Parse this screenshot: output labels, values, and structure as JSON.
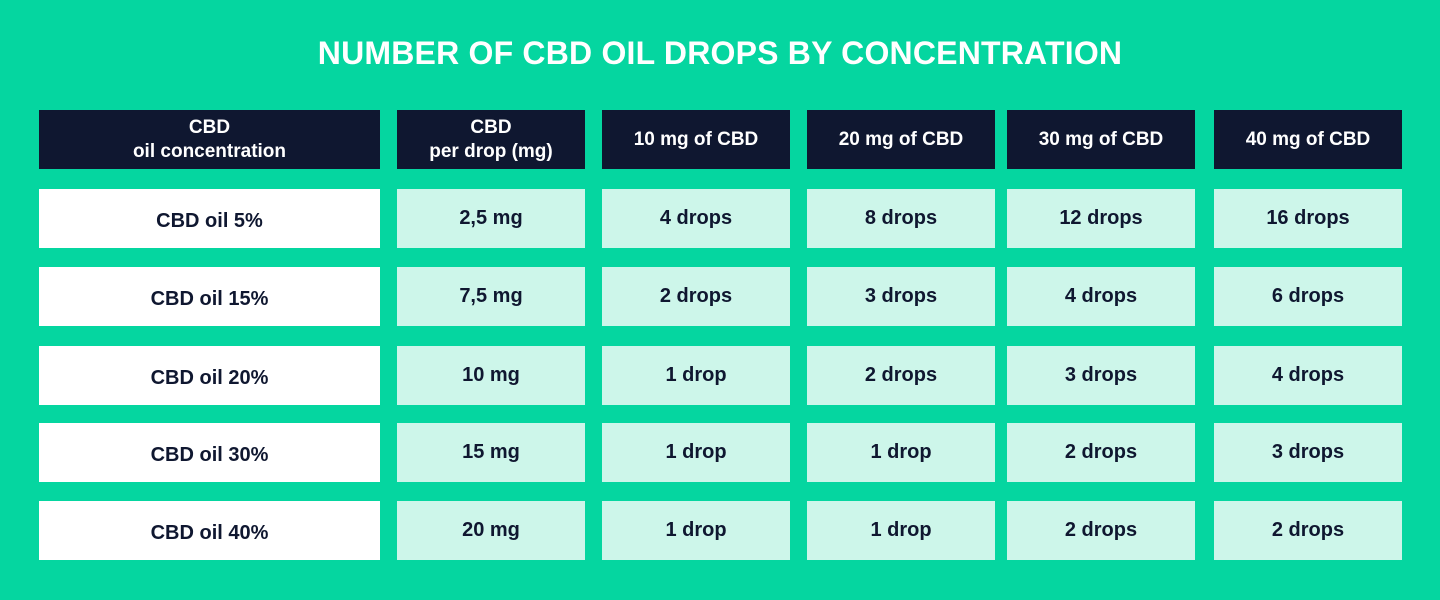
{
  "chart_data": {
    "type": "table",
    "title": "NUMBER OF CBD OIL DROPS BY CONCENTRATION",
    "columns": [
      "CBD\noil concentration",
      "CBD\nper drop (mg)",
      "10 mg of CBD",
      "20 mg of CBD",
      "30 mg of CBD",
      "40 mg of CBD"
    ],
    "rows": [
      [
        "CBD oil 5%",
        "2,5 mg",
        "4 drops",
        "8 drops",
        "12 drops",
        "16 drops"
      ],
      [
        "CBD oil 15%",
        "7,5 mg",
        "2 drops",
        "3 drops",
        "4 drops",
        "6 drops"
      ],
      [
        "CBD oil 20%",
        "10 mg",
        "1 drop",
        "2 drops",
        "3 drops",
        "4 drops"
      ],
      [
        "CBD oil 30%",
        "15 mg",
        "1 drop",
        "1 drop",
        "2 drops",
        "3 drops"
      ],
      [
        "CBD oil 40%",
        "20 mg",
        "1 drop",
        "1 drop",
        "2 drops",
        "2 drops"
      ]
    ]
  },
  "colors": {
    "background": "#05d6a0",
    "header": "#0f1730",
    "label_cell": "#ffffff",
    "value_cell": "#cdf6ea",
    "text_dark": "#0f1730",
    "text_light": "#ffffff"
  }
}
